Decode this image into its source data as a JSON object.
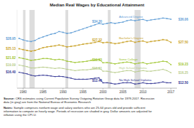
{
  "chart_data": {
    "type": "line",
    "title": "Median Real Wages by Educational Attainment",
    "x": [
      1979,
      1980,
      1981,
      1982,
      1983,
      1984,
      1985,
      1986,
      1987,
      1988,
      1989,
      1990,
      1991,
      1992,
      1993,
      1994,
      1995,
      1996,
      1997,
      1998,
      1999,
      2000,
      2001,
      2002,
      2003,
      2004,
      2005,
      2006,
      2007,
      2008,
      2009,
      2010,
      2011,
      2012,
      2013,
      2014,
      2015,
      2016,
      2017
    ],
    "series": [
      {
        "name": "Advanced Degree",
        "color": "#5b9bd5",
        "marker": "circle",
        "values": [
          28.95,
          28.4,
          28.0,
          27.8,
          28.2,
          29.0,
          29.5,
          30.0,
          30.5,
          30.8,
          31.5,
          31.2,
          30.8,
          31.0,
          31.5,
          32.0,
          32.5,
          33.0,
          33.5,
          34.0,
          34.5,
          34.2,
          34.5,
          34.8,
          34.5,
          34.8,
          35.0,
          35.5,
          35.8,
          35.5,
          35.8,
          36.0,
          35.5,
          35.8,
          36.0,
          36.2,
          36.5,
          36.3,
          36.06
        ],
        "value_labels": [
          "$28.95",
          null,
          null,
          null,
          null,
          null,
          null,
          null,
          null,
          null,
          null,
          null,
          null,
          null,
          null,
          null,
          null,
          null,
          null,
          null,
          null,
          "$34.20",
          null,
          null,
          null,
          null,
          null,
          null,
          null,
          null,
          null,
          null,
          null,
          null,
          null,
          null,
          null,
          null,
          "$36.06"
        ]
      },
      {
        "name": "Bachelor's Degree",
        "color": "#c9a227",
        "marker": "square",
        "values": [
          25.13,
          24.8,
          24.5,
          24.2,
          24.5,
          25.0,
          25.5,
          25.8,
          26.0,
          26.2,
          26.5,
          26.2,
          25.8,
          26.0,
          26.2,
          26.5,
          26.8,
          27.0,
          27.2,
          27.5,
          27.8,
          27.32,
          27.5,
          27.3,
          27.0,
          27.2,
          27.5,
          27.8,
          28.0,
          27.5,
          27.8,
          28.0,
          27.5,
          27.8,
          28.0,
          28.2,
          28.5,
          28.3,
          27.5
        ],
        "value_labels": [
          "$25.13",
          null,
          null,
          null,
          null,
          null,
          null,
          null,
          null,
          null,
          null,
          null,
          null,
          null,
          null,
          null,
          null,
          null,
          null,
          null,
          null,
          "$27.32",
          null,
          null,
          null,
          null,
          null,
          null,
          null,
          null,
          null,
          null,
          null,
          null,
          null,
          null,
          null,
          null,
          "$27.50"
        ]
      },
      {
        "name": "Some College",
        "color": "#9dc42b",
        "marker": "diamond",
        "values": [
          21.82,
          21.5,
          21.2,
          20.8,
          21.0,
          21.2,
          21.5,
          21.5,
          21.3,
          21.0,
          21.2,
          21.0,
          20.5,
          20.3,
          20.0,
          20.2,
          20.3,
          20.5,
          20.8,
          21.0,
          21.2,
          19.93,
          20.0,
          19.8,
          19.5,
          19.8,
          20.0,
          20.2,
          20.0,
          19.5,
          19.8,
          20.0,
          19.5,
          19.8,
          20.0,
          20.2,
          20.5,
          20.3,
          19.23
        ],
        "value_labels": [
          "$21.82",
          null,
          null,
          null,
          null,
          null,
          null,
          null,
          null,
          null,
          null,
          null,
          null,
          null,
          null,
          null,
          null,
          null,
          null,
          null,
          null,
          "$19.93",
          null,
          null,
          null,
          null,
          null,
          null,
          null,
          null,
          null,
          null,
          null,
          null,
          null,
          null,
          null,
          null,
          "$19.23"
        ]
      },
      {
        "name": "High School Diploma",
        "color": "#b8cc8a",
        "marker": "triangle-up",
        "values": [
          19.09,
          18.8,
          18.5,
          18.0,
          18.0,
          18.2,
          18.3,
          18.2,
          18.0,
          17.8,
          18.0,
          17.8,
          17.5,
          17.3,
          17.0,
          17.2,
          17.3,
          17.3,
          17.5,
          17.8,
          18.0,
          16.81,
          16.8,
          16.5,
          16.3,
          16.5,
          16.8,
          17.0,
          17.0,
          16.5,
          16.8,
          17.0,
          16.8,
          16.8,
          17.0,
          17.2,
          17.5,
          17.0,
          16.25
        ],
        "value_labels": [
          "$19.09",
          null,
          null,
          null,
          null,
          null,
          null,
          null,
          null,
          null,
          null,
          null,
          null,
          null,
          null,
          null,
          null,
          null,
          null,
          null,
          null,
          "$16.81",
          null,
          null,
          null,
          null,
          null,
          null,
          null,
          null,
          null,
          null,
          null,
          null,
          null,
          null,
          null,
          null,
          "$16.25"
        ]
      },
      {
        "name": "No High School Diploma",
        "color": "#2e3192",
        "marker": "triangle-down",
        "values": [
          16.4,
          16.1,
          15.8,
          15.3,
          15.0,
          15.2,
          15.3,
          15.2,
          15.0,
          14.8,
          14.9,
          14.8,
          14.5,
          14.2,
          13.8,
          13.8,
          13.8,
          13.8,
          14.0,
          14.2,
          14.3,
          12.46,
          12.5,
          12.3,
          12.0,
          12.2,
          12.5,
          12.5,
          12.5,
          12.0,
          12.2,
          12.5,
          12.2,
          12.2,
          12.3,
          12.5,
          12.8,
          12.5,
          12.5
        ],
        "value_labels": [
          "$16.40",
          null,
          null,
          null,
          null,
          null,
          null,
          null,
          null,
          null,
          null,
          null,
          null,
          null,
          null,
          null,
          null,
          null,
          null,
          null,
          null,
          "$12.46",
          null,
          null,
          null,
          null,
          null,
          null,
          null,
          null,
          null,
          null,
          null,
          null,
          null,
          null,
          null,
          null,
          "$12.50"
        ]
      }
    ],
    "recession_bands": [
      [
        1980.0,
        1980.6
      ],
      [
        1981.6,
        1982.9
      ],
      [
        1990.6,
        1991.3
      ],
      [
        2001.2,
        2001.9
      ],
      [
        2007.9,
        2009.4
      ]
    ],
    "xlim": [
      1978.5,
      2018.5
    ],
    "ylim": [
      10.5,
      39.5
    ],
    "xticks": [
      1980,
      1985,
      1990,
      1995,
      2000,
      2005,
      2010,
      2017
    ],
    "tick_labels": "x",
    "grid": false,
    "data_labels": true,
    "annotations": [
      {
        "heading": "Source:",
        "text": " CRS estimates using Current Population Survey Outgoing Rotation Group data for 1979-2017. Recession\ndata (in gray) are from the National Bureau of Economic Research"
      },
      {
        "heading": "Notes:",
        "text": " Sample comprises nonfarm wage and salary workers who are 25-64 years old and provide sufficient\ninformation to compute an hourly wage. Periods of recession are shaded in gray. Dollar amounts are adjusted for\ninflation using the CPI-U."
      }
    ]
  }
}
